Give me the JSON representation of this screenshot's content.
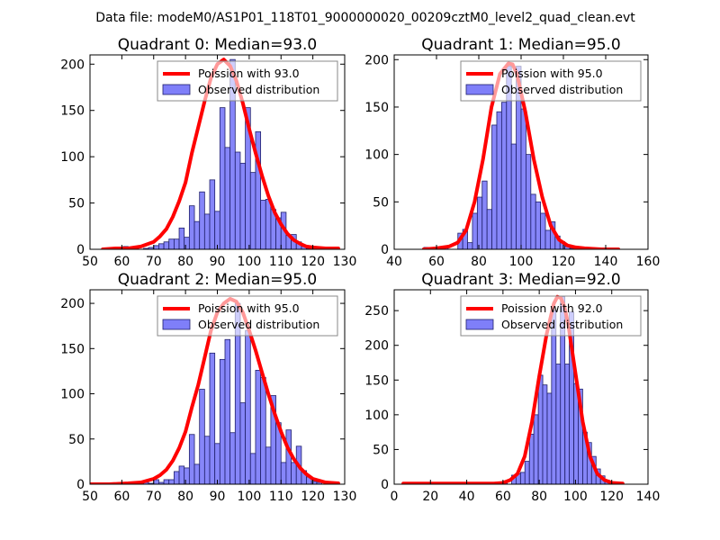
{
  "figure": {
    "suptitle": "Data file: modeM0/AS1P01_118T01_9000000020_00209cztM0_level2_quad_clean.evt"
  },
  "colors": {
    "bar_fill": "#7f7ff9",
    "bar_edge": "#20206b",
    "poisson_line": "#ff0000",
    "legend_edge": "#888888"
  },
  "chart_data": [
    {
      "type": "bar",
      "title": "Quadrant 0: Median=93.0",
      "xlabel": "",
      "ylabel": "",
      "xlim": [
        50,
        130
      ],
      "ylim": [
        0,
        210
      ],
      "xticks": [
        50,
        60,
        70,
        80,
        90,
        100,
        110,
        120,
        130
      ],
      "yticks": [
        0,
        50,
        100,
        150,
        200
      ],
      "grid": false,
      "legend": {
        "placement": "top-right",
        "entries": [
          "Poission with 93.0",
          "Observed distribution"
        ]
      },
      "bin_width": 1.6,
      "bins_start": [
        54.0,
        55.6,
        57.2,
        58.8,
        60.4,
        62.0,
        63.6,
        65.2,
        66.8,
        68.4,
        70.0,
        71.6,
        73.2,
        74.8,
        76.4,
        78.0,
        79.6,
        81.2,
        82.8,
        84.4,
        86.0,
        87.6,
        89.2,
        90.8,
        92.4,
        94.0,
        95.6,
        97.2,
        98.8,
        100.4,
        102.0,
        103.6,
        105.2,
        106.8,
        108.4,
        110.0,
        111.6,
        113.2,
        114.8,
        116.4,
        118.0,
        119.6,
        121.2
      ],
      "counts": [
        0,
        0,
        2,
        1,
        3,
        1,
        1,
        0,
        1,
        2,
        4,
        6,
        8,
        11,
        11,
        23,
        13,
        47,
        30,
        62,
        38,
        75,
        41,
        153,
        110,
        205,
        105,
        93,
        153,
        83,
        127,
        53,
        54,
        43,
        34,
        40,
        15,
        16,
        8,
        3,
        1,
        2,
        0
      ],
      "series": [
        {
          "name": "Poission with 93.0",
          "type": "line",
          "x": [
            54,
            58,
            62,
            66,
            70,
            72,
            74,
            76,
            78,
            80,
            82,
            84,
            86,
            88,
            90,
            92,
            94,
            96,
            98,
            100,
            102,
            104,
            106,
            108,
            110,
            112,
            114,
            116,
            118,
            120,
            124,
            128
          ],
          "y": [
            0,
            1,
            1,
            3,
            8,
            14,
            22,
            35,
            52,
            72,
            104,
            132,
            160,
            185,
            200,
            205,
            198,
            182,
            158,
            130,
            104,
            80,
            58,
            40,
            27,
            17,
            10,
            6,
            3,
            2,
            1,
            1
          ]
        }
      ]
    },
    {
      "type": "bar",
      "title": "Quadrant 1: Median=95.0",
      "xlabel": "",
      "ylabel": "",
      "xlim": [
        40,
        160
      ],
      "ylim": [
        0,
        205
      ],
      "xticks": [
        40,
        60,
        80,
        100,
        120,
        140,
        160
      ],
      "yticks": [
        0,
        50,
        100,
        150,
        200
      ],
      "grid": false,
      "legend": {
        "placement": "top-right",
        "entries": [
          "Poission with 95.0",
          "Observed distribution"
        ]
      },
      "bin_width": 2.3,
      "bins_start": [
        54.0,
        56.3,
        58.6,
        60.9,
        63.2,
        65.5,
        67.8,
        70.1,
        72.4,
        74.7,
        77.0,
        79.3,
        81.6,
        83.9,
        86.2,
        88.5,
        90.8,
        93.1,
        95.4,
        97.7,
        100.0,
        102.3,
        104.6,
        106.9,
        109.2,
        111.5,
        113.8,
        116.1,
        118.4,
        120.7,
        123.0
      ],
      "counts": [
        2,
        0,
        0,
        0,
        3,
        0,
        0,
        17,
        21,
        7,
        38,
        55,
        72,
        42,
        131,
        145,
        155,
        193,
        111,
        193,
        148,
        100,
        58,
        50,
        38,
        20,
        29,
        14,
        8,
        3,
        1
      ],
      "series": [
        {
          "name": "Poission with 95.0",
          "type": "line",
          "x": [
            54,
            60,
            66,
            70,
            74,
            78,
            82,
            86,
            90,
            94,
            96,
            98,
            102,
            106,
            110,
            114,
            118,
            122,
            126,
            130,
            138,
            146
          ],
          "y": [
            0,
            1,
            3,
            7,
            20,
            50,
            95,
            150,
            185,
            196,
            195,
            185,
            145,
            95,
            55,
            25,
            10,
            4,
            2,
            1,
            0,
            0
          ]
        }
      ]
    },
    {
      "type": "bar",
      "title": "Quadrant 2: Median=95.0",
      "xlabel": "",
      "ylabel": "",
      "xlim": [
        50,
        130
      ],
      "ylim": [
        0,
        215
      ],
      "xticks": [
        50,
        60,
        70,
        80,
        90,
        100,
        110,
        120,
        130
      ],
      "yticks": [
        0,
        50,
        100,
        150,
        200
      ],
      "grid": false,
      "legend": {
        "placement": "top-right",
        "entries": [
          "Poission with 95.0",
          "Observed distribution"
        ]
      },
      "bin_width": 1.6,
      "bins_start": [
        54.0,
        55.6,
        57.2,
        58.8,
        60.4,
        62.0,
        63.6,
        65.2,
        66.8,
        68.4,
        70.0,
        71.6,
        73.2,
        74.8,
        76.4,
        78.0,
        79.6,
        81.2,
        82.8,
        84.4,
        86.0,
        87.6,
        89.2,
        90.8,
        92.4,
        94.0,
        95.6,
        97.2,
        98.8,
        100.4,
        102.0,
        103.6,
        105.2,
        106.8,
        108.4,
        110.0,
        111.6,
        113.2,
        114.8,
        116.4,
        118.0,
        119.6,
        121.2,
        122.8,
        124.4
      ],
      "counts": [
        0,
        0,
        0,
        2,
        1,
        0,
        0,
        0,
        2,
        1,
        5,
        2,
        5,
        5,
        14,
        20,
        18,
        55,
        22,
        105,
        53,
        145,
        45,
        138,
        160,
        57,
        200,
        90,
        170,
        34,
        126,
        118,
        41,
        98,
        68,
        24,
        60,
        24,
        42,
        15,
        8,
        3,
        2,
        0,
        1
      ],
      "series": [
        {
          "name": "Poission with 95.0",
          "type": "line",
          "x": [
            50,
            56,
            62,
            66,
            70,
            72,
            74,
            76,
            78,
            80,
            82,
            84,
            86,
            88,
            90,
            92,
            94,
            96,
            98,
            100,
            102,
            104,
            106,
            108,
            110,
            112,
            114,
            116,
            118,
            120,
            124,
            128
          ],
          "y": [
            0,
            0,
            1,
            2,
            6,
            10,
            16,
            26,
            40,
            58,
            85,
            110,
            140,
            170,
            190,
            200,
            205,
            202,
            190,
            170,
            148,
            124,
            100,
            78,
            58,
            41,
            28,
            18,
            11,
            6,
            2,
            1
          ]
        }
      ]
    },
    {
      "type": "bar",
      "title": "Quadrant 3: Median=92.0",
      "xlabel": "",
      "ylabel": "",
      "xlim": [
        0,
        140
      ],
      "ylim": [
        0,
        280
      ],
      "xticks": [
        0,
        20,
        40,
        60,
        80,
        100,
        120,
        140
      ],
      "yticks": [
        0,
        50,
        100,
        150,
        200,
        250
      ],
      "grid": false,
      "legend": {
        "placement": "top-right",
        "entries": [
          "Poission with 92.0",
          "Observed distribution"
        ]
      },
      "bin_width": 2.45,
      "bins_start": [
        57.4,
        59.9,
        62.3,
        64.8,
        67.2,
        69.7,
        72.1,
        74.6,
        77.0,
        79.5,
        81.9,
        84.4,
        86.8,
        89.3,
        91.7,
        94.2,
        96.6,
        99.1,
        101.5,
        104.0,
        106.4,
        108.9,
        111.3,
        113.8,
        116.2,
        118.7,
        121.1
      ],
      "counts": [
        3,
        3,
        0,
        13,
        15,
        17,
        33,
        72,
        100,
        157,
        143,
        131,
        250,
        173,
        270,
        173,
        248,
        145,
        137,
        75,
        60,
        40,
        22,
        12,
        6,
        3,
        1
      ],
      "series": [
        {
          "name": "Poission with 92.0",
          "type": "line",
          "x": [
            5,
            20,
            40,
            55,
            60,
            64,
            68,
            72,
            76,
            80,
            84,
            88,
            90,
            92,
            94,
            96,
            100,
            104,
            108,
            112,
            116,
            120,
            126
          ],
          "y": [
            1,
            1,
            1,
            1,
            2,
            6,
            15,
            40,
            90,
            155,
            215,
            260,
            270,
            268,
            255,
            230,
            160,
            90,
            40,
            15,
            6,
            2,
            1
          ]
        }
      ]
    }
  ]
}
